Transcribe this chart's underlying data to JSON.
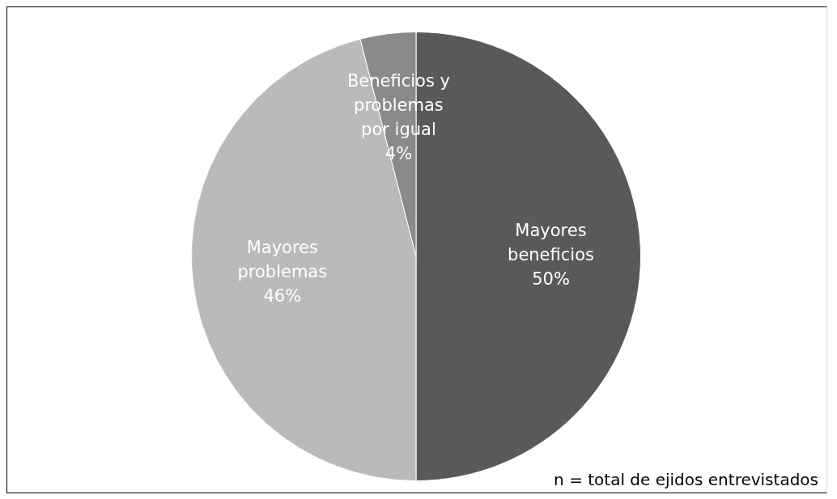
{
  "chart_data": {
    "type": "pie",
    "categories": [
      "Mayores beneficios",
      "Mayores problemas",
      "Beneficios y problemas por igual"
    ],
    "values": [
      50,
      46,
      4
    ],
    "value_labels": [
      "50%",
      "46%",
      "4%"
    ],
    "colors": [
      "#595959",
      "#bababa",
      "#8a8a8a"
    ],
    "legend": false,
    "annotations": [
      "n = total de ejidos entrevistados"
    ]
  }
}
